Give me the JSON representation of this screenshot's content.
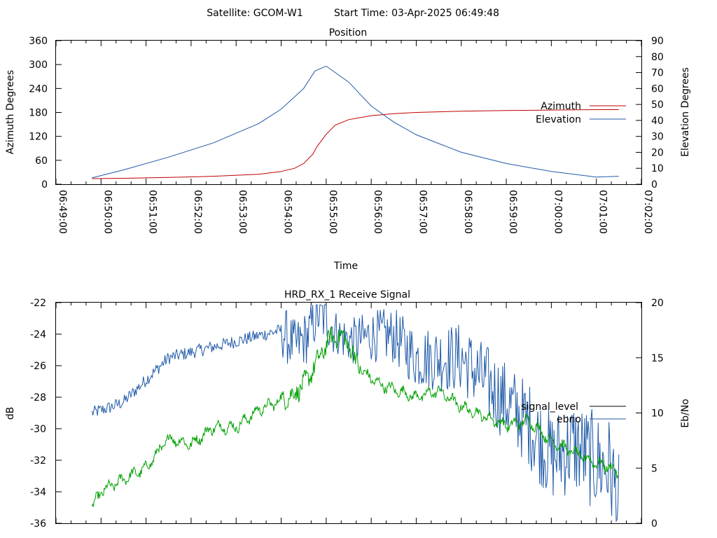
{
  "header": {
    "satellite": "Satellite: GCOM-W1",
    "start_time": "Start Time: 03-Apr-2025 06:49:48"
  },
  "colors": {
    "azimuth": "#c00000",
    "elevation": "#1f5aa8",
    "signal_level": "#000000",
    "ebno": "#1f5aa8",
    "green_trace": "#00a000"
  },
  "chart_data": [
    {
      "type": "line",
      "title": "Position",
      "xlabel": "Time",
      "ylabel": "Azimuth Degrees",
      "y2label": "Elevation Degrees",
      "xticks": [
        "06:49:00",
        "06:50:00",
        "06:51:00",
        "06:52:00",
        "06:53:00",
        "06:54:00",
        "06:55:00",
        "06:56:00",
        "06:57:00",
        "06:58:00",
        "06:59:00",
        "07:00:00",
        "07:01:00",
        "07:02:00"
      ],
      "xlim_minutes": [
        0,
        13
      ],
      "ylim": [
        0,
        360
      ],
      "yticks": [
        0,
        60,
        120,
        180,
        240,
        300,
        360
      ],
      "y2lim": [
        0,
        90
      ],
      "y2ticks": [
        0,
        10,
        20,
        30,
        40,
        50,
        60,
        70,
        80,
        90
      ],
      "legend_position": "right",
      "series": [
        {
          "name": "Azimuth",
          "axis": "left",
          "x_minutes": [
            0.8,
            1.5,
            2.5,
            3.5,
            4.5,
            5.0,
            5.3,
            5.5,
            5.7,
            5.8,
            6.0,
            6.2,
            6.5,
            7.0,
            7.5,
            8.0,
            9.0,
            10.0,
            11.0,
            12.0,
            12.5
          ],
          "values": [
            14,
            15,
            17,
            20,
            25,
            32,
            40,
            52,
            75,
            95,
            125,
            148,
            162,
            172,
            177,
            180,
            183,
            185,
            186,
            187,
            187
          ]
        },
        {
          "name": "Elevation",
          "axis": "right",
          "x_minutes": [
            0.8,
            1.5,
            2.5,
            3.5,
            4.5,
            5.0,
            5.5,
            5.75,
            6.0,
            6.5,
            7.0,
            7.5,
            8.0,
            9.0,
            10.0,
            11.0,
            12.0,
            12.5
          ],
          "values": [
            4,
            9,
            17,
            26,
            38,
            47,
            60,
            71,
            74,
            64,
            49,
            39,
            31,
            20,
            13,
            8,
            4.5,
            5
          ]
        }
      ]
    },
    {
      "type": "line",
      "title": "HRD_RX_1 Receive Signal",
      "ylabel": "dB",
      "y2label": "Eb/No",
      "ylim": [
        -36,
        -22
      ],
      "yticks": [
        -36,
        -34,
        -32,
        -30,
        -28,
        -26,
        -24,
        -22
      ],
      "y2lim": [
        0,
        20
      ],
      "y2ticks": [
        0,
        5,
        10,
        15,
        20
      ],
      "legend_position": "right",
      "series": [
        {
          "name": "signal_level",
          "axis": "left",
          "x_minutes": [],
          "values": []
        },
        {
          "name": "ebno",
          "axis": "right",
          "x_minutes": [
            0.8,
            1.2,
            1.5,
            2.0,
            2.5,
            3.0,
            3.5,
            4.0,
            4.5,
            5.0,
            5.3,
            5.6,
            5.8,
            6.0,
            6.3,
            6.6,
            7.0,
            7.5,
            8.0,
            8.5,
            9.0,
            9.5,
            10.0,
            10.5,
            11.0,
            11.5,
            12.0,
            12.3,
            12.5
          ],
          "values": [
            10,
            10.5,
            11,
            13,
            15,
            15.5,
            16,
            16.5,
            17,
            17.5,
            16,
            17,
            19,
            18.5,
            17,
            16.5,
            17,
            17,
            15,
            15,
            15,
            13,
            11,
            9,
            6,
            7,
            5.5,
            5,
            1.5
          ]
        },
        {
          "name": "",
          "axis": "left",
          "x_minutes": [
            0.8,
            1.0,
            1.5,
            2.0,
            2.5,
            3.0,
            3.5,
            4.0,
            4.5,
            5.0,
            5.3,
            5.6,
            5.9,
            6.1,
            6.4,
            6.8,
            7.2,
            7.6,
            8.0,
            8.5,
            9.0,
            9.5,
            10.0,
            10.5,
            11.0,
            11.5,
            12.0,
            12.3,
            12.5
          ],
          "values": [
            -35,
            -34,
            -33.2,
            -32.5,
            -30.6,
            -31.0,
            -29.9,
            -29.9,
            -28.8,
            -28.2,
            -27.8,
            -26.8,
            -25.2,
            -24.2,
            -24.2,
            -26.4,
            -27.2,
            -27.6,
            -28.0,
            -27.6,
            -28.6,
            -29.2,
            -29.8,
            -29.5,
            -30.8,
            -31.5,
            -32.2,
            -32.4,
            -33.0
          ]
        }
      ]
    }
  ]
}
